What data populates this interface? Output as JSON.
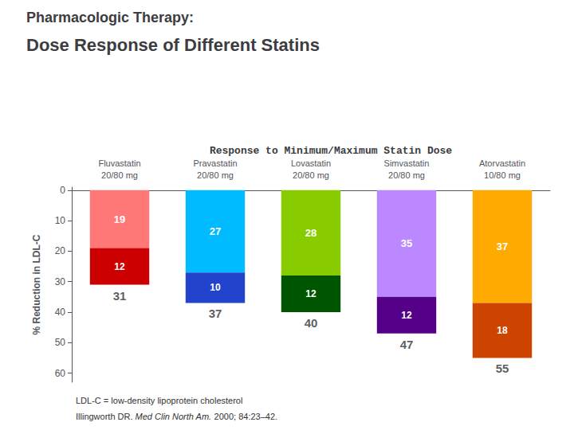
{
  "chart_data": {
    "type": "bar",
    "supertitle": "Pharmacologic Therapy:",
    "title": "Dose Response of Different Statins",
    "subtitle": "Response to Minimum/Maximum Statin Dose",
    "ylabel": "% Reduction in LDL-C",
    "categories": [
      "Fluvastatin",
      "Pravastatin",
      "Lovastatin",
      "Simvastatin",
      "Atorvastatin"
    ],
    "doses": [
      "20/80 mg",
      "20/80 mg",
      "20/80 mg",
      "20/80 mg",
      "10/80 mg"
    ],
    "series": [
      {
        "values": [
          19,
          27,
          28,
          35,
          37
        ],
        "colors": [
          "#ff7777",
          "#00bbff",
          "#88cc00",
          "#bb88ff",
          "#ffaa00"
        ]
      },
      {
        "values": [
          12,
          10,
          12,
          12,
          18
        ],
        "colors": [
          "#cc0000",
          "#2244cc",
          "#005500",
          "#550088",
          "#cc4400"
        ]
      }
    ],
    "totals": [
      31,
      37,
      40,
      47,
      55
    ],
    "stacked": true,
    "data_labels": true,
    "tick_labels": "y",
    "grid": false,
    "ylim": [
      63,
      -1
    ],
    "yticks": [
      0,
      10,
      20,
      30,
      40,
      50,
      60
    ],
    "footnote": "LDL-C = low-density lipoprotein cholesterol",
    "source": [
      {
        "text": "Illingworth DR. "
      },
      {
        "text": "Med Clin North Am.",
        "italic": true
      },
      {
        "text": " 2000; 84:23–42."
      }
    ]
  }
}
